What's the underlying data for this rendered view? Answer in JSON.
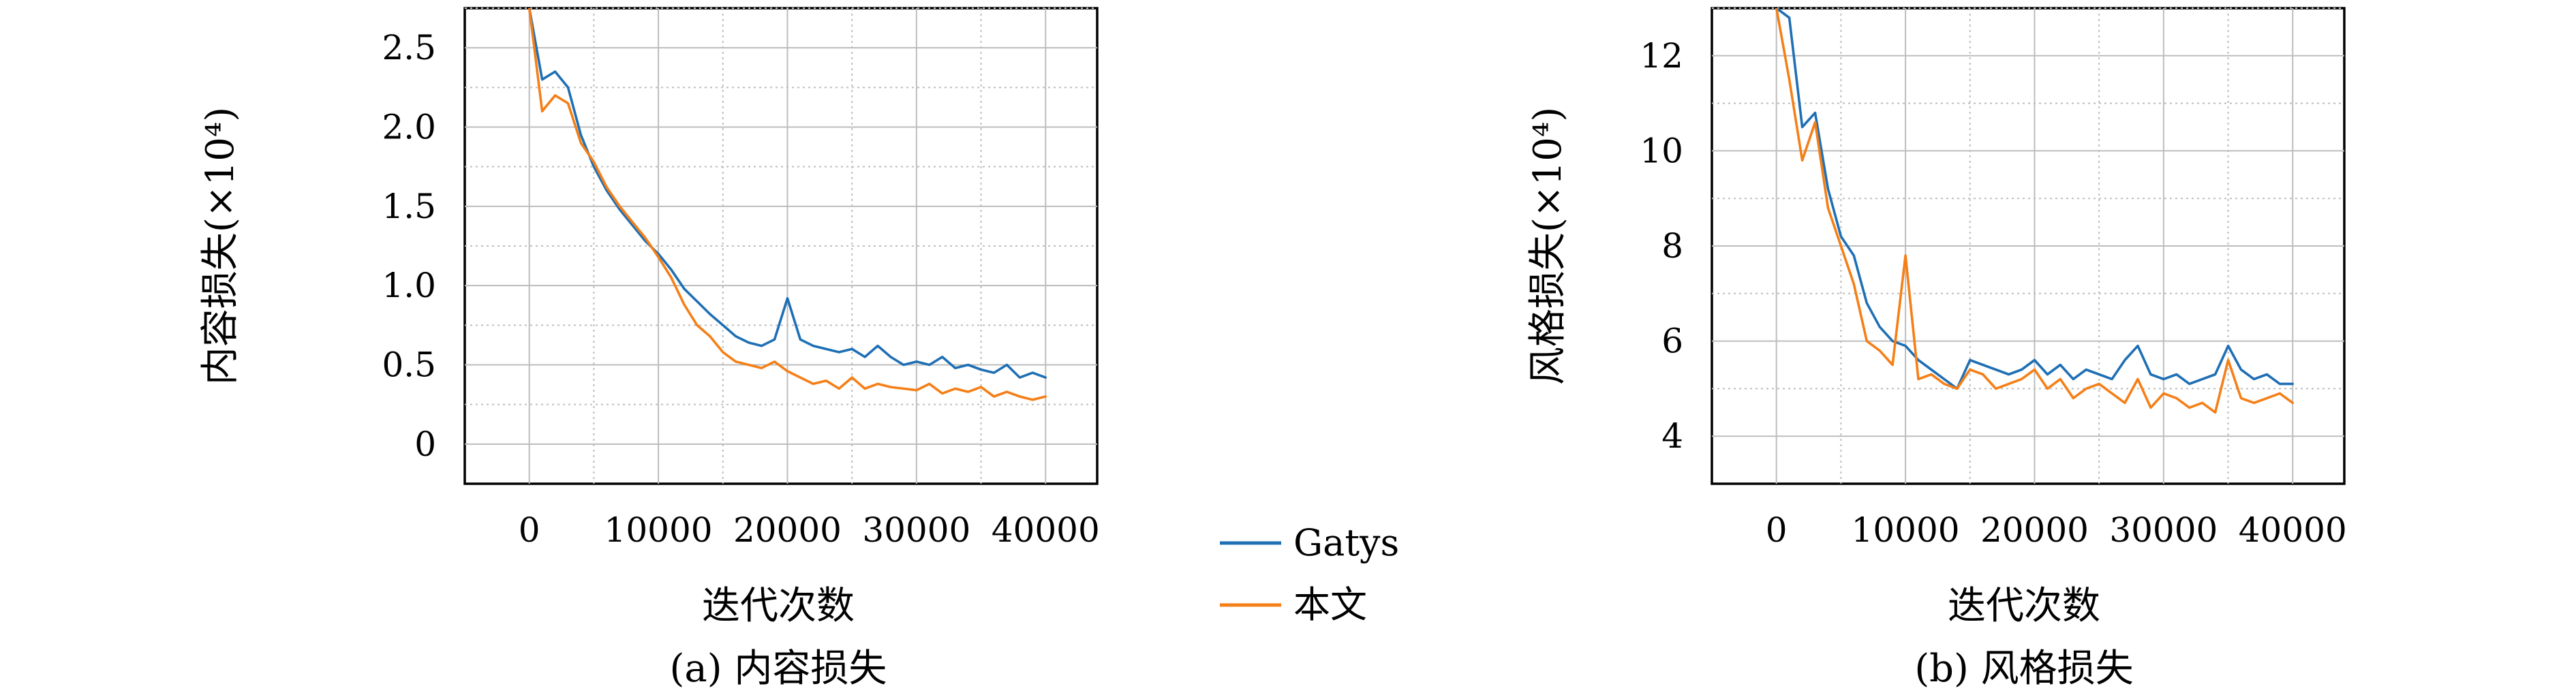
{
  "chart_data": [
    {
      "type": "line",
      "ylabel": "内容损失(×10⁴)",
      "xlabel": "迭代次数",
      "caption": "(a) 内容损失",
      "xlim": [
        -5000,
        44000
      ],
      "ylim": [
        -0.25,
        2.75
      ],
      "xticks": [
        0,
        10000,
        20000,
        30000,
        40000
      ],
      "xtick_labels": [
        "0",
        "10000",
        "20000",
        "30000",
        "40000"
      ],
      "yticks": [
        0,
        0.5,
        1.0,
        1.5,
        2.0,
        2.5
      ],
      "ytick_labels": [
        "0",
        "0.5",
        "1.0",
        "1.5",
        "2.0",
        "2.5"
      ],
      "grid": true,
      "series": [
        {
          "name": "Gatys",
          "color": "#1f6fb4",
          "x": [
            0,
            1000,
            2000,
            3000,
            4000,
            5000,
            6000,
            7000,
            8000,
            9000,
            10000,
            11000,
            12000,
            13000,
            14000,
            15000,
            16000,
            17000,
            18000,
            19000,
            20000,
            21000,
            22000,
            23000,
            24000,
            25000,
            26000,
            27000,
            28000,
            29000,
            30000,
            31000,
            32000,
            33000,
            34000,
            35000,
            36000,
            37000,
            38000,
            39000,
            40000
          ],
          "y": [
            2.75,
            2.3,
            2.35,
            2.25,
            1.95,
            1.75,
            1.6,
            1.48,
            1.38,
            1.28,
            1.2,
            1.1,
            0.98,
            0.9,
            0.82,
            0.75,
            0.68,
            0.64,
            0.62,
            0.66,
            0.92,
            0.66,
            0.62,
            0.6,
            0.58,
            0.6,
            0.55,
            0.62,
            0.55,
            0.5,
            0.52,
            0.5,
            0.55,
            0.48,
            0.5,
            0.47,
            0.45,
            0.5,
            0.42,
            0.45,
            0.42
          ]
        },
        {
          "name": "本文",
          "color": "#f57f17",
          "x": [
            0,
            1000,
            2000,
            3000,
            4000,
            5000,
            6000,
            7000,
            8000,
            9000,
            10000,
            11000,
            12000,
            13000,
            14000,
            15000,
            16000,
            17000,
            18000,
            19000,
            20000,
            21000,
            22000,
            23000,
            24000,
            25000,
            26000,
            27000,
            28000,
            29000,
            30000,
            31000,
            32000,
            33000,
            34000,
            35000,
            36000,
            37000,
            38000,
            39000,
            40000
          ],
          "y": [
            2.75,
            2.1,
            2.2,
            2.15,
            1.9,
            1.78,
            1.62,
            1.5,
            1.4,
            1.3,
            1.18,
            1.05,
            0.88,
            0.75,
            0.68,
            0.58,
            0.52,
            0.5,
            0.48,
            0.52,
            0.46,
            0.42,
            0.38,
            0.4,
            0.35,
            0.42,
            0.35,
            0.38,
            0.36,
            0.35,
            0.34,
            0.38,
            0.32,
            0.35,
            0.33,
            0.36,
            0.3,
            0.33,
            0.3,
            0.28,
            0.3
          ]
        }
      ]
    },
    {
      "type": "line",
      "ylabel": "风格损失(×10⁴)",
      "xlabel": "迭代次数",
      "caption": "(b) 风格损失",
      "xlim": [
        -5000,
        44000
      ],
      "ylim": [
        3,
        13
      ],
      "xticks": [
        0,
        10000,
        20000,
        30000,
        40000
      ],
      "xtick_labels": [
        "0",
        "10000",
        "20000",
        "30000",
        "40000"
      ],
      "yticks": [
        4,
        6,
        8,
        10,
        12
      ],
      "ytick_labels": [
        "4",
        "6",
        "8",
        "10",
        "12"
      ],
      "grid": true,
      "series": [
        {
          "name": "Gatys",
          "color": "#1f6fb4",
          "x": [
            0,
            1000,
            2000,
            3000,
            4000,
            5000,
            6000,
            7000,
            8000,
            9000,
            10000,
            11000,
            12000,
            13000,
            14000,
            15000,
            16000,
            17000,
            18000,
            19000,
            20000,
            21000,
            22000,
            23000,
            24000,
            25000,
            26000,
            27000,
            28000,
            29000,
            30000,
            31000,
            32000,
            33000,
            34000,
            35000,
            36000,
            37000,
            38000,
            39000,
            40000
          ],
          "y": [
            13,
            12.8,
            10.5,
            10.8,
            9.2,
            8.2,
            7.8,
            6.8,
            6.3,
            6.0,
            5.9,
            5.6,
            5.4,
            5.2,
            5.0,
            5.6,
            5.5,
            5.4,
            5.3,
            5.4,
            5.6,
            5.3,
            5.5,
            5.2,
            5.4,
            5.3,
            5.2,
            5.6,
            5.9,
            5.3,
            5.2,
            5.3,
            5.1,
            5.2,
            5.3,
            5.9,
            5.4,
            5.2,
            5.3,
            5.1,
            5.1
          ]
        },
        {
          "name": "本文",
          "color": "#f57f17",
          "x": [
            0,
            1000,
            2000,
            3000,
            4000,
            5000,
            6000,
            7000,
            8000,
            9000,
            10000,
            11000,
            12000,
            13000,
            14000,
            15000,
            16000,
            17000,
            18000,
            19000,
            20000,
            21000,
            22000,
            23000,
            24000,
            25000,
            26000,
            27000,
            28000,
            29000,
            30000,
            31000,
            32000,
            33000,
            34000,
            35000,
            36000,
            37000,
            38000,
            39000,
            40000
          ],
          "y": [
            13,
            11.5,
            9.8,
            10.6,
            8.8,
            8.0,
            7.2,
            6.0,
            5.8,
            5.5,
            7.8,
            5.2,
            5.3,
            5.1,
            5.0,
            5.4,
            5.3,
            5.0,
            5.1,
            5.2,
            5.4,
            5.0,
            5.2,
            4.8,
            5.0,
            5.1,
            4.9,
            4.7,
            5.2,
            4.6,
            4.9,
            4.8,
            4.6,
            4.7,
            4.5,
            5.6,
            4.8,
            4.7,
            4.8,
            4.9,
            4.7
          ]
        }
      ]
    }
  ],
  "legend": {
    "entries": [
      {
        "label": "Gatys",
        "color": "#1f6fb4"
      },
      {
        "label": "本文",
        "color": "#f57f17"
      }
    ]
  }
}
